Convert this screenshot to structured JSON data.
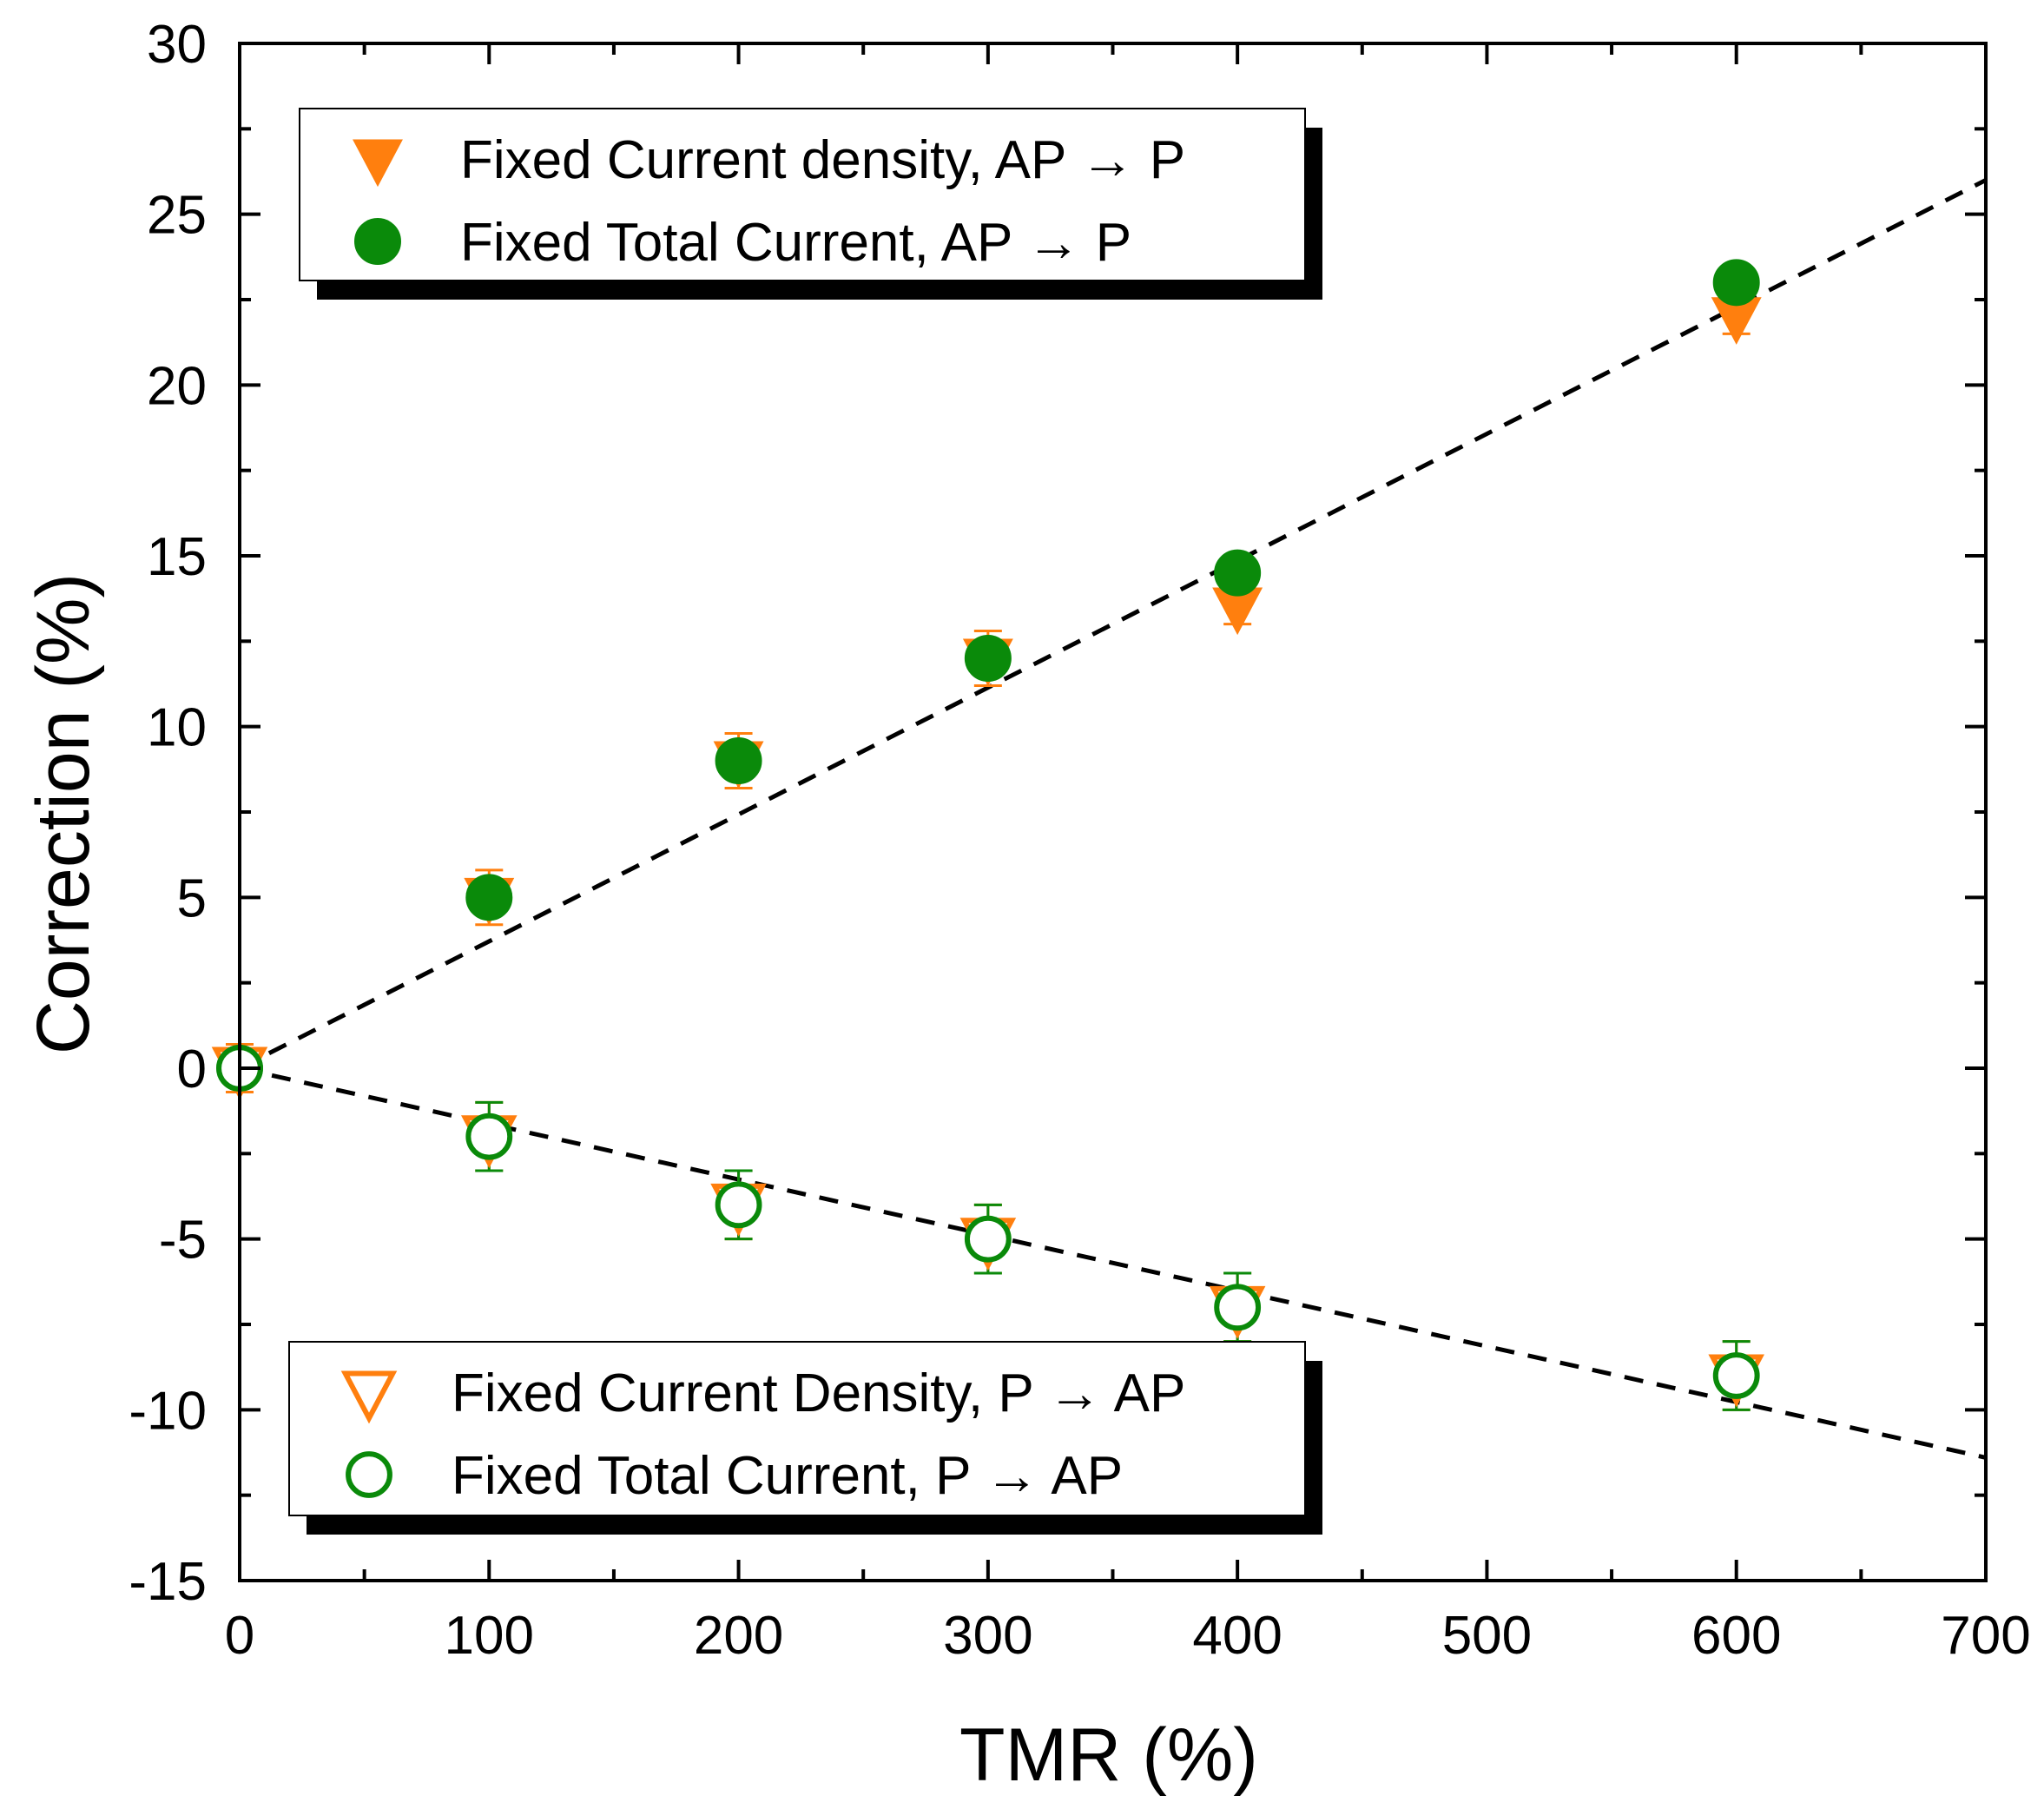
{
  "chart_data": {
    "type": "scatter",
    "xlabel": "TMR (%)",
    "ylabel": "Correction (%)",
    "xlim": [
      0,
      700
    ],
    "ylim": [
      -15,
      30
    ],
    "x_ticks": [
      0,
      100,
      200,
      300,
      400,
      500,
      600,
      700
    ],
    "y_ticks": [
      -15,
      -10,
      -5,
      0,
      5,
      10,
      15,
      20,
      25,
      30
    ],
    "x_minor_step": 50,
    "y_minor_step": 2.5,
    "series": [
      {
        "name": "Fixed Current density, AP → P",
        "marker": "triangle-down-filled",
        "color": "#ff7f0e",
        "x": [
          0,
          100,
          200,
          300,
          400,
          600
        ],
        "y": [
          0,
          5,
          9,
          12,
          13.5,
          22
        ],
        "yerr": [
          0.7,
          0.8,
          0.8,
          0.8,
          0.5,
          0.5
        ]
      },
      {
        "name": "Fixed Total Current, AP → P",
        "marker": "circle-filled",
        "color": "#0a8a0a",
        "x": [
          0,
          100,
          200,
          300,
          400,
          600
        ],
        "y": [
          0,
          5,
          9,
          12,
          14.5,
          23
        ],
        "yerr": [
          0,
          0,
          0,
          0,
          0,
          0
        ]
      },
      {
        "name": "Fixed Current Density, P → AP",
        "marker": "triangle-down-open",
        "color": "#ff7f0e",
        "x": [
          0,
          100,
          200,
          300,
          400,
          600
        ],
        "y": [
          0,
          -2,
          -4,
          -5,
          -7,
          -9
        ],
        "yerr": [
          0,
          1,
          1,
          1,
          1,
          1
        ]
      },
      {
        "name": "Fixed Total Current, P → AP",
        "marker": "circle-open",
        "color": "#0a8a0a",
        "x": [
          0,
          100,
          200,
          300,
          400,
          600
        ],
        "y": [
          0,
          -2,
          -4,
          -5,
          -7,
          -9
        ],
        "yerr": [
          0,
          1,
          1,
          1,
          1,
          1
        ]
      }
    ],
    "fit_lines": [
      {
        "name": "fit-positive",
        "style": "dashed",
        "color": "#000000",
        "x": [
          0,
          700
        ],
        "y": [
          0,
          26
        ]
      },
      {
        "name": "fit-negative",
        "style": "dashed",
        "color": "#000000",
        "x": [
          0,
          700
        ],
        "y": [
          0,
          -11.4
        ]
      }
    ],
    "legends": [
      {
        "placement": "top-left",
        "entries": [
          0,
          1
        ]
      },
      {
        "placement": "bottom-left",
        "entries": [
          2,
          3
        ]
      }
    ]
  }
}
